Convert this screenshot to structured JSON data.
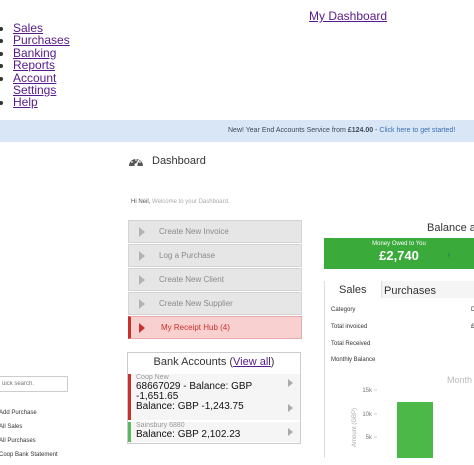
{
  "nav": {
    "dashboard_link": "My Dashboard",
    "items": [
      "Sales",
      "Purchases",
      "Banking",
      "Reports",
      "Account",
      "Settings",
      "Help"
    ]
  },
  "promo": {
    "text": "New! Year End Accounts Service from ",
    "price": "£124.00",
    "sep": " - ",
    "link": "Click here to get started!"
  },
  "dashboard": {
    "title": "Dashboard",
    "icon": "gauge-icon",
    "greeting_name": "Hi Neil,",
    "greeting_sub": " Welcome to your Dashboard."
  },
  "quick_actions": [
    {
      "label": "Create New Invoice",
      "active": false
    },
    {
      "label": "Log a Purchase",
      "active": false
    },
    {
      "label": "Create New Client",
      "active": false
    },
    {
      "label": "Create New Supplier",
      "active": false
    },
    {
      "label": "My Receipt Hub (4)",
      "active": true
    }
  ],
  "bank": {
    "title": "Bank Accounts (",
    "view_all": "View all",
    "title_end": ")",
    "accounts": [
      {
        "name": "Coop New",
        "line1": "68667029 - Balance: GBP",
        "line2": "-1,651.65",
        "line3": "Balance: GBP -1,243.75",
        "color": "#c9302c"
      },
      {
        "name": "Sainsbury 6880",
        "line1": "Balance: GBP 2,102.23",
        "color": "#5cb85c"
      }
    ]
  },
  "balance": {
    "title": "Balance a",
    "owed_label": "Money Owed to You",
    "owed_value": "£2,740",
    "owed_color": "#3aaa3a"
  },
  "stats": {
    "tabs": [
      "Sales",
      "Purchases"
    ],
    "rows": [
      {
        "label": "Category",
        "value": "D"
      },
      {
        "label": "Total invoiced",
        "value": "£"
      },
      {
        "label": "Total Received",
        "value": ""
      },
      {
        "label": "Monthly Balance",
        "value": ""
      }
    ]
  },
  "sidebar": {
    "search_placeholder": "uick search.",
    "links": [
      "Add Purchase",
      "All Sales",
      "All Purchases",
      "Coop Bank Statement"
    ]
  },
  "chart_data": {
    "type": "bar",
    "title": "Month",
    "ylabel": "Amount (GBP)",
    "yticks": [
      "15k",
      "10k",
      "5k"
    ],
    "ylim": [
      0,
      16000
    ],
    "categories": [
      ""
    ],
    "values": [
      12500
    ],
    "bar_color": "#4cb848"
  }
}
